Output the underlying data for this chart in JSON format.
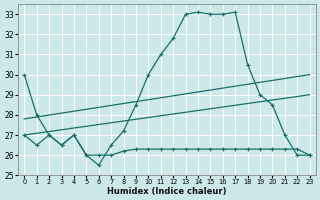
{
  "xlabel": "Humidex (Indice chaleur)",
  "xlim": [
    -0.5,
    23.5
  ],
  "ylim": [
    25,
    33.5
  ],
  "yticks": [
    25,
    26,
    27,
    28,
    29,
    30,
    31,
    32,
    33
  ],
  "xticks": [
    0,
    1,
    2,
    3,
    4,
    5,
    6,
    7,
    8,
    9,
    10,
    11,
    12,
    13,
    14,
    15,
    16,
    17,
    18,
    19,
    20,
    21,
    22,
    23
  ],
  "bg_color": "#cde8e8",
  "grid_color": "#b8d8d8",
  "line_color": "#1a6e6a",
  "line1_x": [
    0,
    1,
    2,
    3,
    4,
    5,
    6,
    7,
    8,
    9,
    10,
    11,
    12,
    13,
    14,
    15,
    16,
    17,
    18,
    19,
    20,
    21,
    22,
    23
  ],
  "line1_y": [
    30,
    28,
    27,
    26.5,
    27,
    26,
    25.5,
    26.5,
    27.2,
    28.5,
    30.0,
    31.0,
    31.8,
    33.0,
    33.1,
    33.0,
    33.0,
    33.1,
    30.5,
    29.0,
    28.5,
    27.0,
    26.0,
    26.0
  ],
  "line2_x": [
    0,
    1,
    2,
    3,
    4,
    5,
    6,
    7,
    8,
    9,
    10,
    11,
    12,
    13,
    14,
    15,
    16,
    17,
    18,
    19,
    20,
    21,
    22,
    23
  ],
  "line2_y": [
    27.0,
    26.5,
    27.0,
    26.5,
    27.0,
    26.0,
    26.0,
    26.0,
    26.2,
    26.3,
    26.3,
    26.3,
    26.3,
    26.3,
    26.3,
    26.3,
    26.3,
    26.3,
    26.3,
    26.3,
    26.3,
    26.3,
    26.3,
    26.0
  ],
  "trend1_x": [
    0,
    23
  ],
  "trend1_y": [
    27.8,
    30.0
  ],
  "trend2_x": [
    0,
    23
  ],
  "trend2_y": [
    27.0,
    29.0
  ]
}
